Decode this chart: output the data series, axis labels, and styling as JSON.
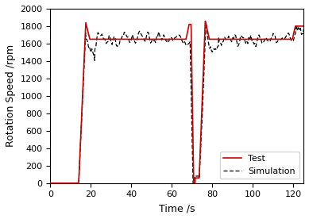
{
  "title": "",
  "xlabel": "Time /s",
  "ylabel": "Rotation Speed /rpm",
  "xlim": [
    0,
    125
  ],
  "ylim": [
    0,
    2000
  ],
  "xticks": [
    0,
    20,
    40,
    60,
    80,
    100,
    120
  ],
  "yticks": [
    0,
    200,
    400,
    600,
    800,
    1000,
    1200,
    1400,
    1600,
    1800,
    2000
  ],
  "test_color": "#cc0000",
  "sim_color": "#000000",
  "legend_loc": "lower right",
  "figsize": [
    3.89,
    2.76
  ],
  "dpi": 100
}
